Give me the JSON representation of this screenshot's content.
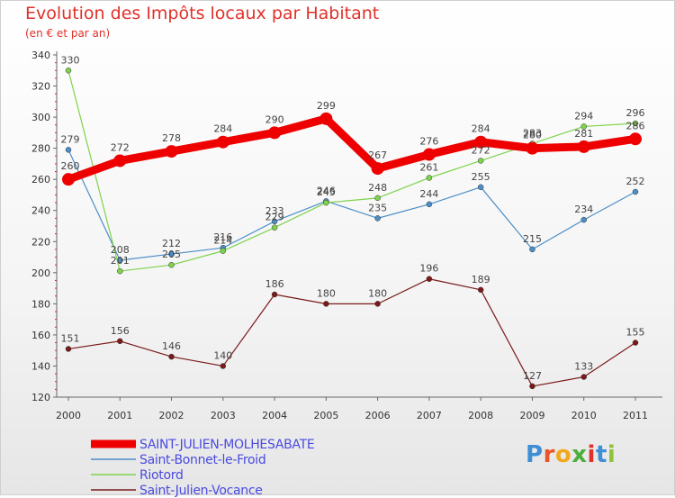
{
  "header": {
    "title": "Evolution des Impôts locaux par Habitant",
    "subtitle": "(en € et par an)"
  },
  "brand": {
    "letters": [
      "P",
      "r",
      "o",
      "x",
      "i",
      "t",
      "i"
    ],
    "colors": [
      "#3f8fd6",
      "#e8562a",
      "#f2a81d",
      "#4cae3c",
      "#e0312a",
      "#3f8fd6",
      "#8fc33a"
    ]
  },
  "chart_data": {
    "type": "line",
    "x": [
      "2000",
      "2001",
      "2002",
      "2003",
      "2004",
      "2005",
      "2006",
      "2007",
      "2008",
      "2009",
      "2010",
      "2011"
    ],
    "ylim": [
      120,
      340
    ],
    "yticks": [
      120,
      140,
      160,
      180,
      200,
      220,
      240,
      260,
      280,
      300,
      320,
      340
    ],
    "grid": false,
    "legend_position": "bottom-left",
    "series": [
      {
        "name": "SAINT-JULIEN-MOLHESABATE",
        "color": "#ee0000",
        "values": [
          260,
          272,
          278,
          284,
          290,
          299,
          267,
          276,
          284,
          280,
          281,
          286
        ],
        "labels": [
          "260",
          "272",
          "278",
          "284",
          "290",
          "299",
          "267",
          "276",
          "284",
          "280",
          "281",
          "286"
        ]
      },
      {
        "name": "Saint-Bonnet-le-Froid",
        "color": "#4c8ec7",
        "values": [
          279,
          208,
          212,
          216,
          233,
          246,
          235,
          244,
          255,
          215,
          234,
          252
        ],
        "labels": [
          "279",
          "208",
          "212",
          "216",
          "233",
          "246",
          "235",
          "244",
          "255",
          "215",
          "234",
          "252"
        ]
      },
      {
        "name": "Riotord",
        "color": "#7ed34c",
        "values": [
          330,
          201,
          205,
          214,
          229,
          245,
          248,
          261,
          272,
          283,
          294,
          296
        ],
        "labels": [
          "330",
          "201",
          "205",
          "214",
          "229",
          "245",
          "248",
          "261",
          "272",
          "283",
          "294",
          "296"
        ]
      },
      {
        "name": "Saint-Julien-Vocance",
        "color": "#7a1a1a",
        "values": [
          151,
          156,
          146,
          140,
          186,
          180,
          180,
          196,
          189,
          127,
          133,
          155
        ],
        "labels": [
          "151",
          "156",
          "146",
          "140",
          "186",
          "180",
          "180",
          "196",
          "189",
          "127",
          "133",
          "155"
        ]
      }
    ]
  }
}
